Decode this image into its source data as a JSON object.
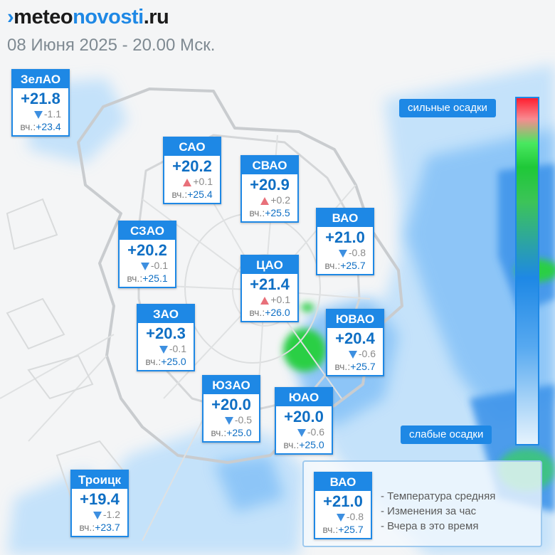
{
  "header": {
    "logo_part1": "meteo",
    "logo_part2": "novosti",
    "logo_part3": ".ru",
    "subtitle": "08 Июня 2025 - 20.00 Мск."
  },
  "yesterday_prefix": "вч.:",
  "districts": [
    {
      "name": "ЗелАО",
      "temp": "+21.8",
      "trend": "down",
      "change": "-1.1",
      "yesterday": "+23.4"
    },
    {
      "name": "САО",
      "temp": "+20.2",
      "trend": "up",
      "change": "+0.1",
      "yesterday": "+25.4"
    },
    {
      "name": "СВАО",
      "temp": "+20.9",
      "trend": "up",
      "change": "+0.2",
      "yesterday": "+25.5"
    },
    {
      "name": "ВАО",
      "temp": "+21.0",
      "trend": "down",
      "change": "-0.8",
      "yesterday": "+25.7"
    },
    {
      "name": "СЗАО",
      "temp": "+20.2",
      "trend": "down",
      "change": "-0.1",
      "yesterday": "+25.1"
    },
    {
      "name": "ЦАО",
      "temp": "+21.4",
      "trend": "up",
      "change": "+0.1",
      "yesterday": "+26.0"
    },
    {
      "name": "ЗАО",
      "temp": "+20.3",
      "trend": "down",
      "change": "-0.1",
      "yesterday": "+25.0"
    },
    {
      "name": "ЮВАО",
      "temp": "+20.4",
      "trend": "down",
      "change": "-0.6",
      "yesterday": "+25.7"
    },
    {
      "name": "ЮЗАО",
      "temp": "+20.0",
      "trend": "down",
      "change": "-0.5",
      "yesterday": "+25.0"
    },
    {
      "name": "ЮАО",
      "temp": "+20.0",
      "trend": "down",
      "change": "-0.6",
      "yesterday": "+25.0"
    },
    {
      "name": "Троицк",
      "temp": "+19.4",
      "trend": "down",
      "change": "-1.2",
      "yesterday": "+23.7"
    }
  ],
  "precip_scale": {
    "high_label": "сильные осадки",
    "low_label": "слабые осадки",
    "colors": [
      "#ff1f30",
      "#49e860",
      "#1e88e5",
      "#a5d2f7",
      "#e6f3fd"
    ]
  },
  "legend": {
    "example": {
      "name": "ВАО",
      "temp": "+21.0",
      "trend": "down",
      "change": "-0.8",
      "yesterday": "+25.7"
    },
    "items": [
      "- Температура средняя",
      "- Изменения за час",
      "- Вчера в это время"
    ]
  },
  "colors": {
    "accent": "#1e88e5",
    "temp_text": "#0f6fc4",
    "trend_up": "#e8707a",
    "trend_down": "#3d8fe0"
  }
}
